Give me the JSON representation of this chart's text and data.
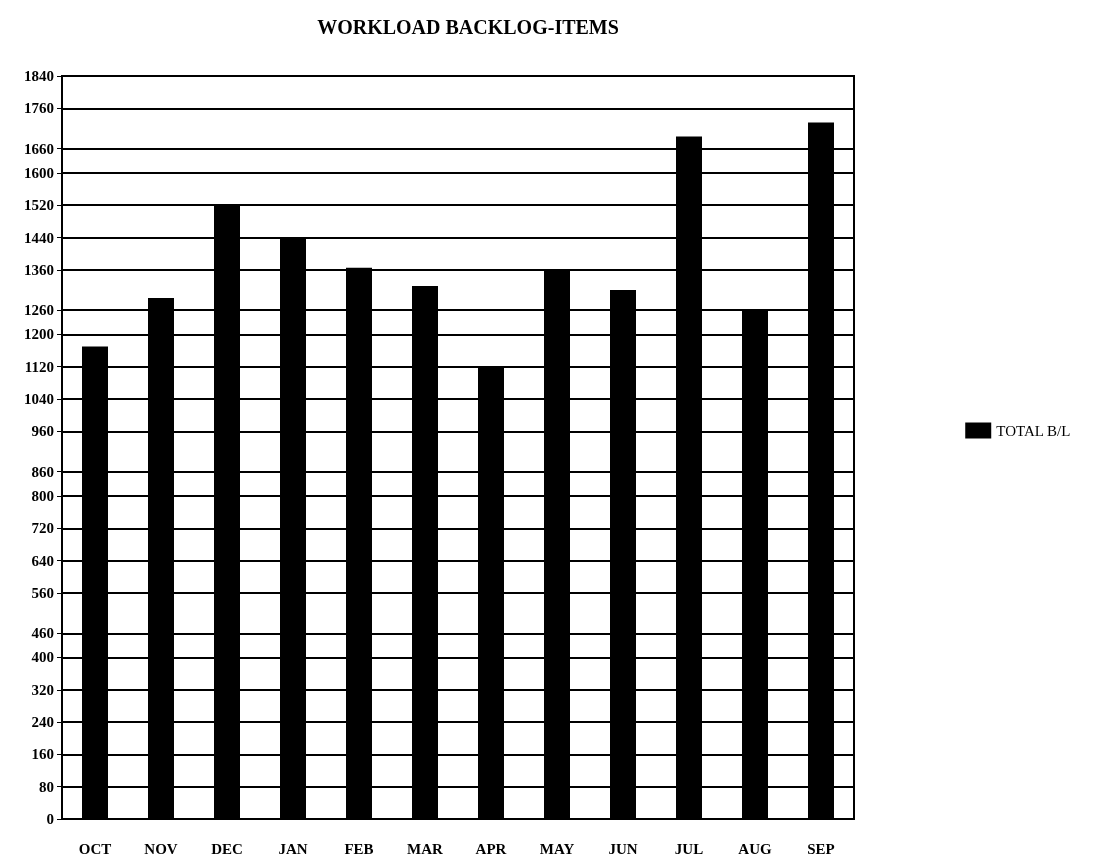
{
  "chart_data": {
    "type": "bar",
    "title": "WORKLOAD BACKLOG-ITEMS",
    "categories": [
      "OCT",
      "NOV",
      "DEC",
      "JAN",
      "FEB",
      "MAR",
      "APR",
      "MAY",
      "JUN",
      "JUL",
      "AUG",
      "SEP"
    ],
    "series": [
      {
        "name": "TOTAL B/L",
        "color": "#000000",
        "values": [
          1170,
          1290,
          1520,
          1440,
          1365,
          1320,
          1120,
          1360,
          1310,
          1690,
          1260,
          1725
        ]
      }
    ],
    "ylim": [
      0,
      1840
    ],
    "yticks": [
      0,
      80,
      160,
      240,
      320,
      400,
      460,
      560,
      640,
      720,
      800,
      860,
      960,
      1040,
      1120,
      1200,
      1260,
      1360,
      1440,
      1520,
      1600,
      1660,
      1760,
      1840
    ],
    "grid": "y",
    "legend": "right"
  }
}
